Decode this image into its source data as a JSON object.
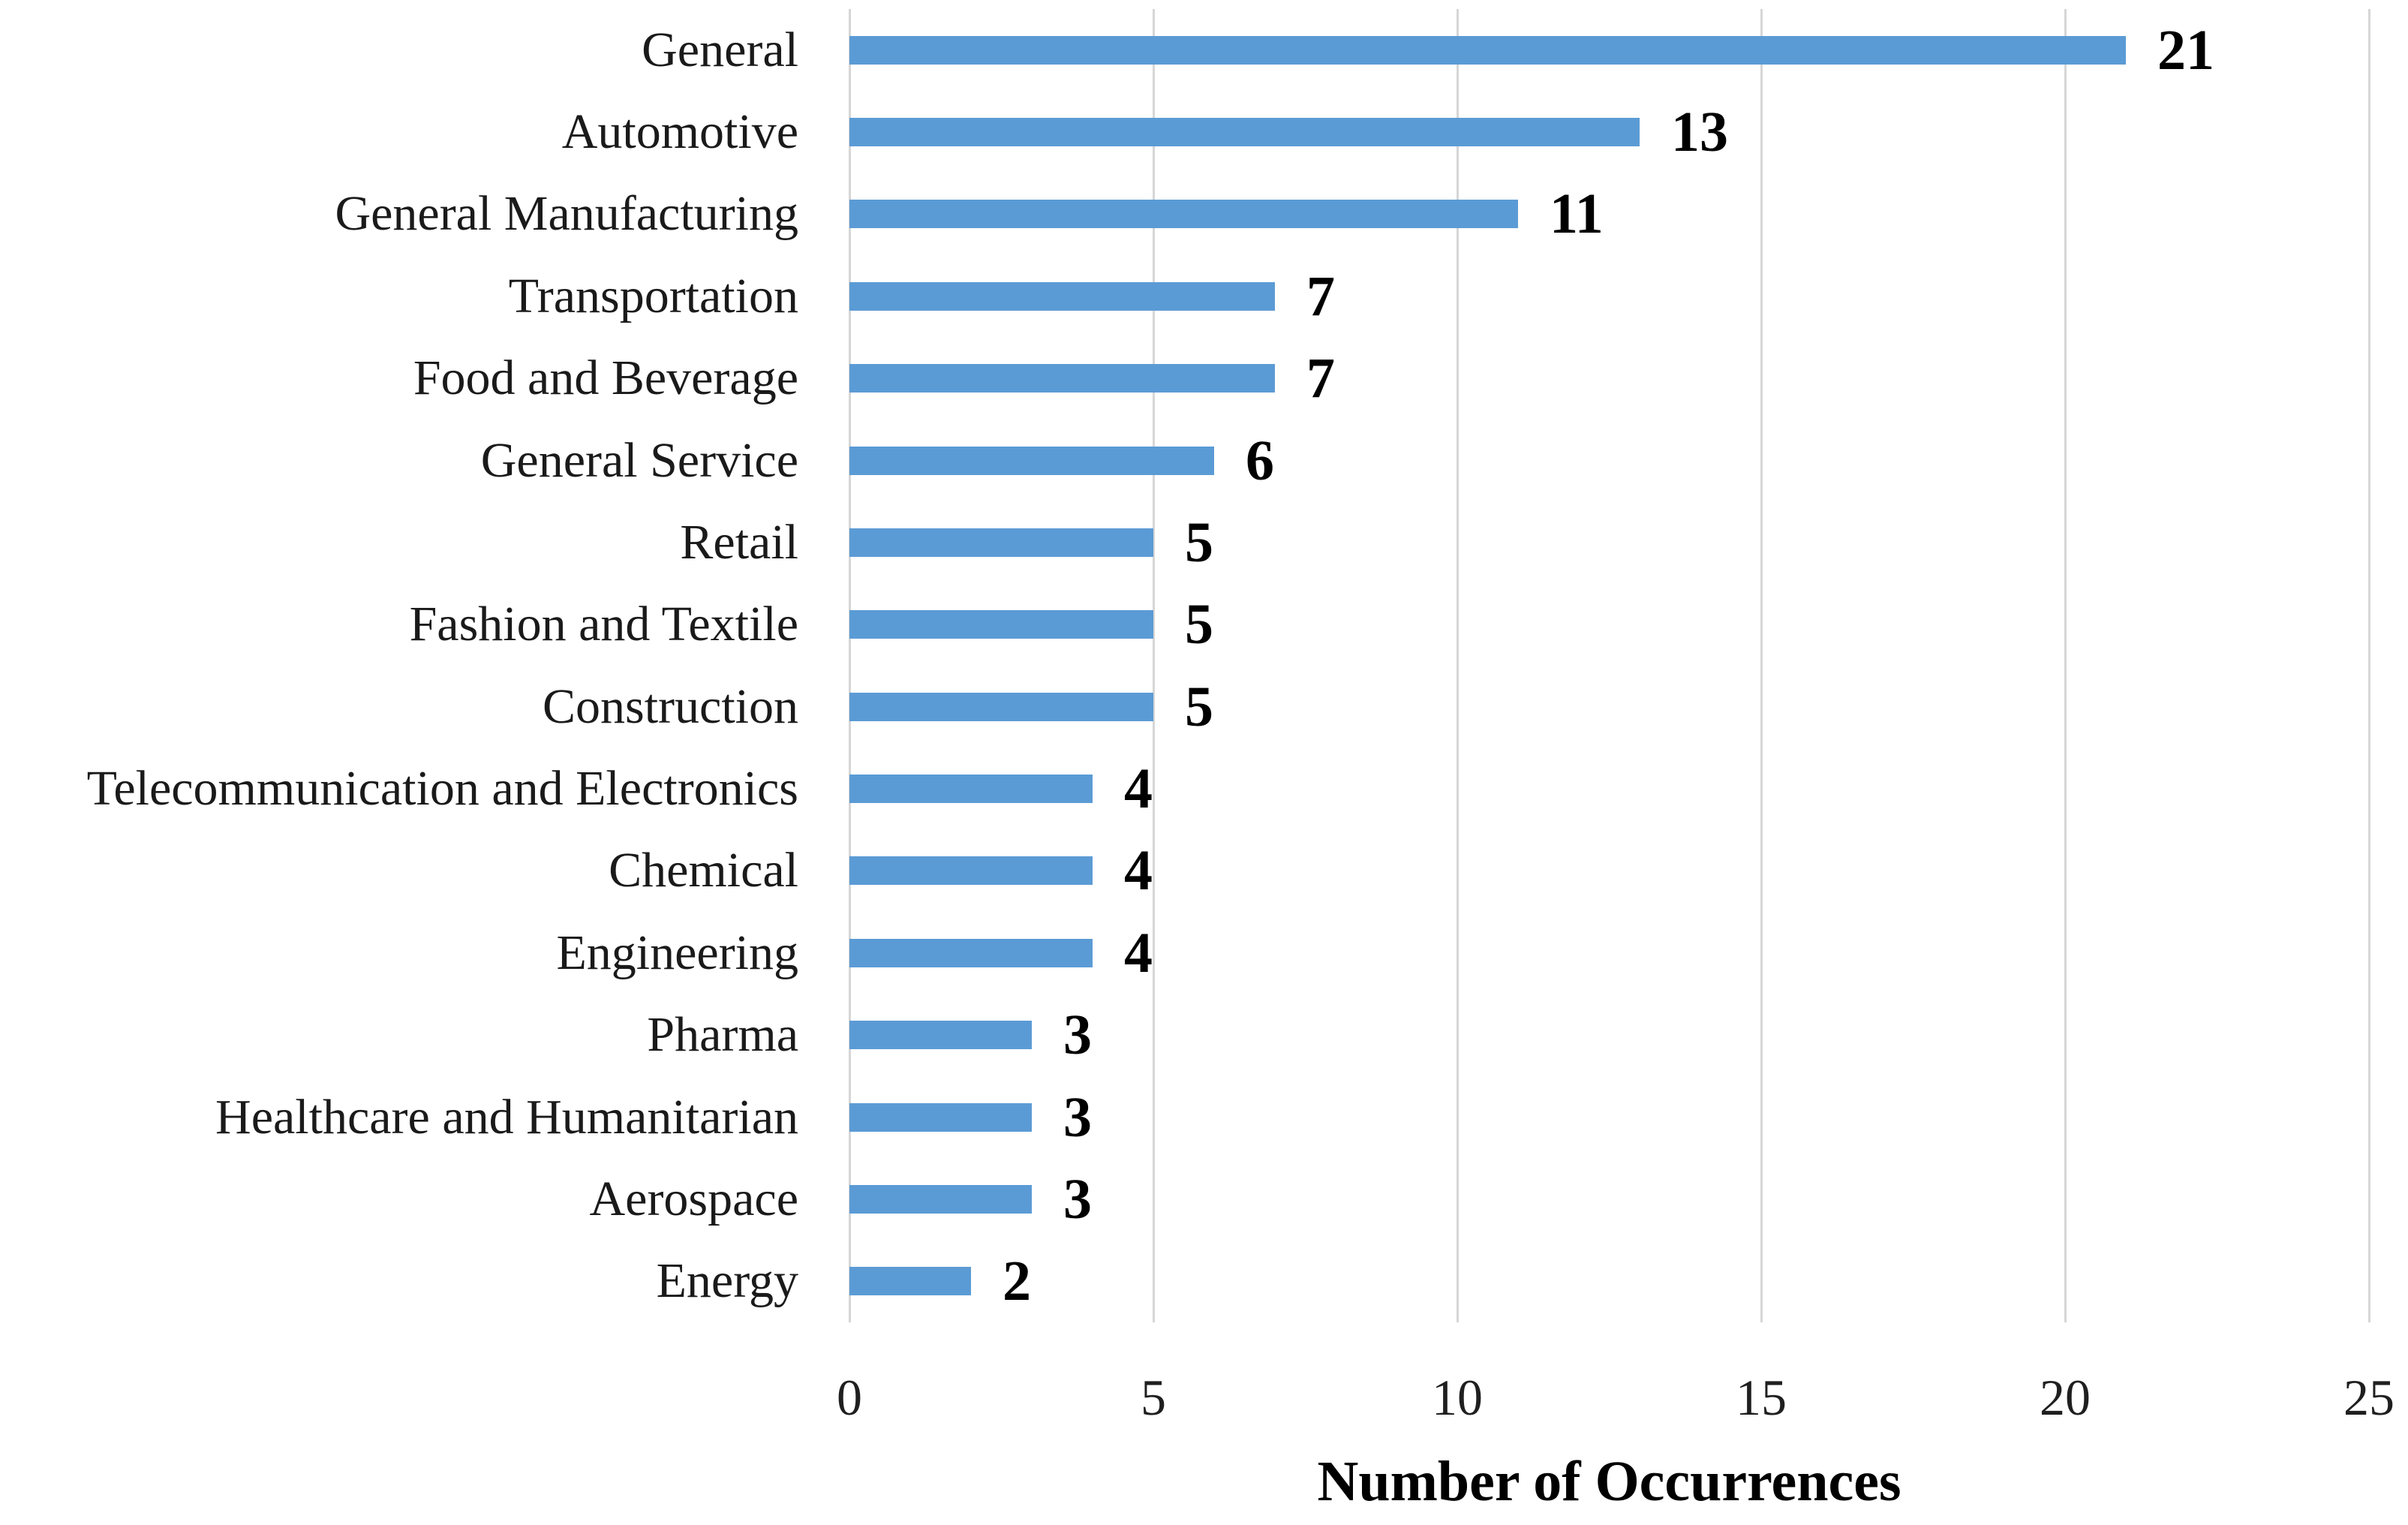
{
  "chart_data": {
    "type": "bar",
    "orientation": "horizontal",
    "title": "",
    "xlabel": "Number of Occurrences",
    "ylabel": "",
    "categories": [
      "General",
      "Automotive",
      "General Manufacturing",
      "Transportation",
      "Food and Beverage",
      "General Service",
      "Retail",
      "Fashion and Textile",
      "Construction",
      "Telecommunication and Electronics",
      "Chemical",
      "Engineering",
      "Pharma",
      "Healthcare and Humanitarian",
      "Aerospace",
      "Energy"
    ],
    "values": [
      21,
      13,
      11,
      7,
      7,
      6,
      5,
      5,
      5,
      4,
      4,
      4,
      3,
      3,
      3,
      2
    ],
    "value_labels_shown": true,
    "xlim": [
      0,
      25
    ],
    "xticks": [
      0,
      5,
      10,
      15,
      20,
      25
    ],
    "grid": "vertical-gridlines-on",
    "legend": "none",
    "bar_color": "#5b9bd5",
    "gridline_color": "#d6d6d6",
    "label_text_color": "#1a1a1a",
    "value_text_color": "#000000"
  }
}
